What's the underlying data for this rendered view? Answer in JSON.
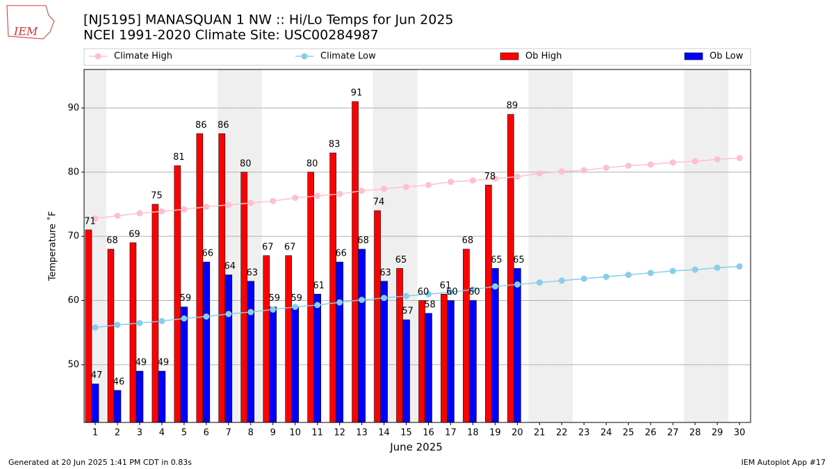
{
  "logo": "IEM",
  "chart_data": {
    "type": "bar",
    "title": "[NJ5195] MANASQUAN 1 NW :: Hi/Lo Temps for Jun 2025",
    "subtitle": "NCEI 1991-2020 Climate Site: USC00284987",
    "x_label": "June 2025",
    "y_label": "Temperature ˚F",
    "footer_left": "Generated at 20 Jun 2025 1:41 PM CDT in 0.83s",
    "footer_right": "IEM Autoplot App #17",
    "x": [
      1,
      2,
      3,
      4,
      5,
      6,
      7,
      8,
      9,
      10,
      11,
      12,
      13,
      14,
      15,
      16,
      17,
      18,
      19,
      20,
      21,
      22,
      23,
      24,
      25,
      26,
      27,
      28,
      29,
      30
    ],
    "xlim": [
      0.5,
      30.5
    ],
    "xticks": [
      1,
      2,
      3,
      4,
      5,
      6,
      7,
      8,
      9,
      10,
      11,
      12,
      13,
      14,
      15,
      16,
      17,
      18,
      19,
      20,
      21,
      22,
      23,
      24,
      25,
      26,
      27,
      28,
      29,
      30
    ],
    "ylim": [
      41,
      96
    ],
    "yticks": [
      50,
      60,
      70,
      80,
      90
    ],
    "grid": true,
    "shaded_days": [
      1,
      7,
      8,
      14,
      15,
      21,
      22,
      28,
      29
    ],
    "series": [
      {
        "name": "Climate High",
        "type": "line",
        "color": "#ffc0cb",
        "values": [
          72.8,
          73.2,
          73.6,
          73.9,
          74.2,
          74.6,
          74.9,
          75.2,
          75.5,
          76.0,
          76.3,
          76.6,
          77.1,
          77.4,
          77.7,
          78.0,
          78.5,
          78.7,
          79.0,
          79.3,
          79.8,
          80.1,
          80.3,
          80.7,
          81.0,
          81.2,
          81.5,
          81.7,
          82.0,
          82.2
        ]
      },
      {
        "name": "Climate Low",
        "type": "line",
        "color": "#87ceeb",
        "values": [
          55.8,
          56.2,
          56.5,
          56.8,
          57.2,
          57.5,
          57.9,
          58.2,
          58.6,
          59.0,
          59.3,
          59.7,
          60.1,
          60.4,
          60.7,
          61.0,
          61.3,
          61.7,
          62.2,
          62.5,
          62.8,
          63.1,
          63.4,
          63.7,
          64.0,
          64.3,
          64.6,
          64.8,
          65.1,
          65.3
        ]
      },
      {
        "name": "Ob High",
        "type": "bar",
        "color": "#ff0000",
        "values": [
          71,
          68,
          69,
          75,
          81,
          86,
          86,
          80,
          67,
          67,
          80,
          83,
          91,
          74,
          65,
          60,
          61,
          68,
          78,
          89,
          null,
          null,
          null,
          null,
          null,
          null,
          null,
          null,
          null,
          null
        ]
      },
      {
        "name": "Ob Low",
        "type": "bar",
        "color": "#0000ff",
        "values": [
          47,
          46,
          49,
          49,
          59,
          66,
          64,
          63,
          59,
          59,
          61,
          66,
          68,
          63,
          57,
          58,
          60,
          60,
          65,
          65,
          null,
          null,
          null,
          null,
          null,
          null,
          null,
          null,
          null,
          null
        ]
      }
    ]
  }
}
